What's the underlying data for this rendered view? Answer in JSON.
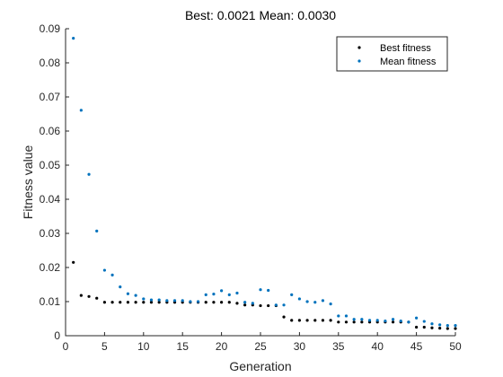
{
  "chart_data": {
    "type": "scatter",
    "title": "Best: 0.0021 Mean: 0.0030",
    "xlabel": "Generation",
    "ylabel": "Fitness value",
    "xlim": [
      0,
      50
    ],
    "ylim": [
      0,
      0.09
    ],
    "xticks": [
      0,
      5,
      10,
      15,
      20,
      25,
      30,
      35,
      40,
      45,
      50
    ],
    "yticks": [
      0,
      0.01,
      0.02,
      0.03,
      0.04,
      0.05,
      0.06,
      0.07,
      0.08,
      0.09
    ],
    "grid": false,
    "legend_position": "top-right",
    "x": [
      1,
      2,
      3,
      4,
      5,
      6,
      7,
      8,
      9,
      10,
      11,
      12,
      13,
      14,
      15,
      16,
      17,
      18,
      19,
      20,
      21,
      22,
      23,
      24,
      25,
      26,
      27,
      28,
      29,
      30,
      31,
      32,
      33,
      34,
      35,
      36,
      37,
      38,
      39,
      40,
      41,
      42,
      43,
      44,
      45,
      46,
      47,
      48,
      49,
      50
    ],
    "series": [
      {
        "name": "Best fitness",
        "color": "#000000",
        "values": [
          0.0215,
          0.0118,
          0.0115,
          0.011,
          0.0098,
          0.0098,
          0.0098,
          0.0098,
          0.0098,
          0.0098,
          0.0098,
          0.0098,
          0.0098,
          0.0098,
          0.0098,
          0.0098,
          0.0098,
          0.0098,
          0.0098,
          0.0098,
          0.0098,
          0.0095,
          0.009,
          0.009,
          0.0088,
          0.0088,
          0.0088,
          0.0055,
          0.0045,
          0.0045,
          0.0045,
          0.0045,
          0.0045,
          0.0045,
          0.004,
          0.004,
          0.004,
          0.004,
          0.004,
          0.004,
          0.004,
          0.004,
          0.004,
          0.004,
          0.0025,
          0.0025,
          0.0023,
          0.0022,
          0.0021,
          0.0021
        ]
      },
      {
        "name": "Mean fitness",
        "color": "#0072BD",
        "values": [
          0.0872,
          0.0661,
          0.0473,
          0.0307,
          0.0192,
          0.0178,
          0.0143,
          0.0123,
          0.0118,
          0.0108,
          0.0105,
          0.0105,
          0.0103,
          0.0103,
          0.0103,
          0.01,
          0.01,
          0.012,
          0.0122,
          0.0132,
          0.012,
          0.0125,
          0.0098,
          0.0095,
          0.0135,
          0.0133,
          0.009,
          0.009,
          0.012,
          0.0108,
          0.01,
          0.0098,
          0.0103,
          0.0093,
          0.0058,
          0.0058,
          0.0048,
          0.0048,
          0.0045,
          0.0045,
          0.0043,
          0.0048,
          0.0043,
          0.004,
          0.0052,
          0.0042,
          0.0035,
          0.0032,
          0.003,
          0.003
        ]
      }
    ]
  }
}
